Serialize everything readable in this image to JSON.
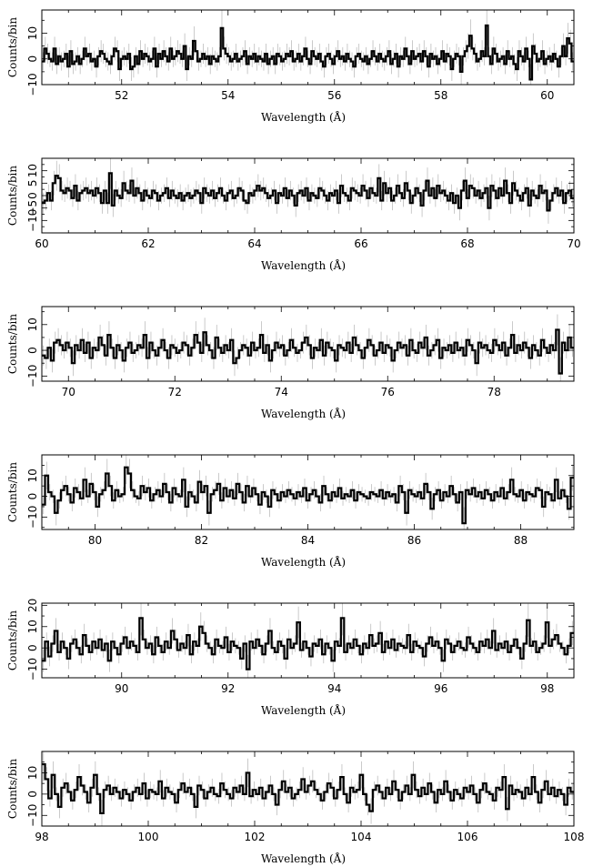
{
  "chart_data": [
    {
      "type": "step",
      "xlabel": "Wavelength (Å)",
      "ylabel": "Counts/bin",
      "xlim": [
        50.5,
        60.5
      ],
      "ylim": [
        -10,
        19
      ],
      "xticks": [
        "52",
        "54",
        "56",
        "58",
        "60"
      ],
      "yticks": [
        "−10",
        "0",
        "10"
      ],
      "error_bars": true,
      "y": [
        -1,
        4,
        2,
        0,
        -1,
        4,
        -2,
        1,
        -1,
        0,
        2,
        -3,
        3,
        -2,
        -1,
        1,
        -2,
        0,
        4,
        1,
        2,
        -1,
        0,
        -3,
        1,
        3,
        2,
        0,
        -1,
        -2,
        1,
        4,
        3,
        -4,
        0,
        1,
        0,
        2,
        -4,
        -3,
        1,
        -2,
        3,
        0,
        2,
        1,
        -1,
        0,
        4,
        -3,
        2,
        0,
        3,
        1,
        -1,
        4,
        0,
        1,
        3,
        2,
        0,
        5,
        -4,
        1,
        0,
        7,
        3,
        -1,
        0,
        2,
        0,
        1,
        -2,
        1,
        0,
        -1,
        1,
        12,
        4,
        2,
        1,
        -1,
        0,
        2,
        -1,
        0,
        1,
        3,
        -2,
        1,
        0,
        2,
        -1,
        1,
        0,
        -1,
        2,
        -2,
        0,
        1,
        -2,
        2,
        1,
        -1,
        0,
        2,
        1,
        3,
        -1,
        0,
        2,
        -1,
        1,
        4,
        0,
        -2,
        3,
        1,
        0,
        2,
        -1,
        -3,
        1,
        2,
        0,
        -2,
        1,
        3,
        0,
        1,
        -1,
        2,
        0,
        -1,
        -3,
        1,
        2,
        0,
        -1,
        1,
        -2,
        0,
        3,
        1,
        -1,
        2,
        0,
        -1,
        1,
        3,
        -2,
        0,
        2,
        -3,
        1,
        0,
        4,
        1,
        -2,
        3,
        0,
        1,
        2,
        -1,
        3,
        1,
        -3,
        2,
        0,
        1,
        -2,
        0,
        3,
        -1,
        2,
        1,
        -4,
        0,
        2,
        1,
        -5,
        1,
        3,
        5,
        9,
        4,
        2,
        -1,
        0,
        3,
        1,
        13,
        1,
        -2,
        4,
        2,
        -1,
        0,
        1,
        -2,
        3,
        0,
        1,
        -2,
        -4,
        3,
        1,
        -1,
        4,
        0,
        -8,
        5,
        2,
        -1,
        0,
        3,
        -2,
        0,
        1,
        -1,
        2,
        0,
        -3,
        1,
        5,
        1,
        8,
        6,
        -1
      ]
    },
    {
      "type": "step",
      "xlabel": "Wavelength (Å)",
      "ylabel": "Counts/bin",
      "xlim": [
        60,
        70
      ],
      "ylim": [
        -15,
        15
      ],
      "xticks": [
        "60",
        "62",
        "64",
        "66",
        "68",
        "70"
      ],
      "yticks": [
        "−10",
        "−5",
        "0",
        "5",
        "10"
      ],
      "error_bars": true,
      "y": [
        -3,
        -2,
        1,
        -2,
        5,
        8,
        7,
        2,
        1,
        3,
        2,
        -1,
        4,
        -2,
        1,
        2,
        3,
        1,
        2,
        0,
        3,
        1,
        -3,
        2,
        -3,
        9,
        -4,
        2,
        0,
        -1,
        5,
        2,
        1,
        6,
        0,
        3,
        1,
        -2,
        2,
        0,
        -1,
        2,
        1,
        -2,
        0,
        1,
        3,
        -1,
        2,
        0,
        -1,
        1,
        -2,
        0,
        1,
        -1,
        0,
        2,
        1,
        -3,
        3,
        1,
        0,
        2,
        -1,
        1,
        3,
        0,
        -2,
        1,
        2,
        -1,
        0,
        3,
        2,
        -2,
        -3,
        1,
        0,
        2,
        4,
        2,
        3,
        1,
        -1,
        0,
        2,
        -3,
        1,
        0,
        3,
        -1,
        2,
        0,
        -4,
        1,
        2,
        0,
        3,
        -2,
        1,
        0,
        -1,
        3,
        2,
        0,
        -2,
        1,
        0,
        2,
        -3,
        4,
        1,
        0,
        -2,
        3,
        2,
        1,
        0,
        4,
        2,
        -1,
        3,
        1,
        0,
        7,
        -2,
        5,
        1,
        3,
        -2,
        0,
        4,
        1,
        -1,
        5,
        2,
        -3,
        0,
        3,
        1,
        -4,
        2,
        6,
        0,
        3,
        -1,
        4,
        1,
        2,
        0,
        -2,
        1,
        -3,
        0,
        -5,
        2,
        6,
        -1,
        4,
        3,
        0,
        2,
        -1,
        1,
        3,
        -5,
        4,
        2,
        -1,
        3,
        0,
        6,
        1,
        -3,
        5,
        2,
        0,
        -2,
        1,
        3,
        -4,
        2,
        0,
        -1,
        4,
        1,
        2,
        -6,
        -2,
        1,
        3,
        0,
        2,
        -3,
        1,
        2,
        -1
      ]
    },
    {
      "type": "step",
      "xlabel": "Wavelength (Å)",
      "ylabel": "Counts/bin",
      "xlim": [
        69.5,
        79.5
      ],
      "ylim": [
        -12,
        17
      ],
      "xticks": [
        "70",
        "72",
        "74",
        "76",
        "78"
      ],
      "yticks": [
        "−10",
        "0",
        "10"
      ],
      "error_bars": true,
      "y": [
        -2,
        -3,
        1,
        -4,
        3,
        4,
        2,
        0,
        3,
        1,
        -5,
        2,
        0,
        4,
        -1,
        3,
        -3,
        1,
        0,
        5,
        2,
        -2,
        6,
        1,
        -3,
        2,
        0,
        -4,
        1,
        3,
        -1,
        0,
        2,
        1,
        6,
        -3,
        3,
        0,
        -2,
        1,
        4,
        0,
        -3,
        2,
        1,
        -1,
        0,
        3,
        2,
        -2,
        1,
        6,
        3,
        -1,
        7,
        2,
        0,
        -3,
        5,
        1,
        -1,
        2,
        0,
        4,
        -5,
        -3,
        0,
        2,
        1,
        -2,
        3,
        0,
        1,
        6,
        -1,
        2,
        -4,
        0,
        3,
        1,
        2,
        -2,
        0,
        4,
        1,
        -1,
        0,
        3,
        5,
        2,
        -3,
        1,
        0,
        4,
        -2,
        3,
        1,
        0,
        -4,
        2,
        1,
        0,
        3,
        -1,
        5,
        2,
        0,
        -3,
        1,
        4,
        2,
        -2,
        0,
        3,
        -1,
        2,
        1,
        -4,
        0,
        3,
        1,
        2,
        -2,
        4,
        0,
        -1,
        3,
        1,
        5,
        -2,
        0,
        2,
        4,
        -3,
        1,
        0,
        2,
        -1,
        3,
        0,
        1,
        -2,
        4,
        2,
        0,
        -5,
        3,
        1,
        2,
        0,
        -1,
        4,
        2,
        0,
        3,
        -2,
        1,
        6,
        -1,
        2,
        0,
        3,
        1,
        -3,
        2,
        0,
        -2,
        4,
        1,
        -1,
        2,
        0,
        8,
        -9,
        3,
        0,
        5,
        1
      ]
    },
    {
      "type": "step",
      "xlabel": "Wavelength (Å)",
      "ylabel": "Counts/bin",
      "xlim": [
        79,
        89
      ],
      "ylim": [
        -16,
        20
      ],
      "xticks": [
        "80",
        "82",
        "84",
        "86",
        "88"
      ],
      "yticks": [
        "−10",
        "0",
        "10"
      ],
      "error_bars": true,
      "y": [
        -4,
        10,
        2,
        0,
        -8,
        -2,
        3,
        5,
        1,
        -3,
        4,
        2,
        -1,
        8,
        0,
        6,
        2,
        -5,
        1,
        3,
        11,
        5,
        -2,
        3,
        0,
        1,
        14,
        11,
        3,
        0,
        -1,
        5,
        2,
        4,
        -2,
        1,
        3,
        0,
        6,
        2,
        -3,
        4,
        1,
        0,
        8,
        -5,
        2,
        0,
        -3,
        7,
        2,
        5,
        -8,
        1,
        3,
        6,
        -2,
        4,
        0,
        3,
        -1,
        6,
        2,
        -3,
        5,
        0,
        4,
        1,
        -4,
        2,
        0,
        -5,
        3,
        1,
        -2,
        2,
        0,
        3,
        1,
        -1,
        2,
        0,
        4,
        -2,
        1,
        3,
        0,
        -3,
        5,
        1,
        -2,
        2,
        0,
        4,
        -1,
        1,
        0,
        3,
        -2,
        2,
        1,
        0,
        -1,
        2,
        1,
        0,
        3,
        -1,
        2,
        0,
        1,
        -3,
        5,
        2,
        -8,
        3,
        1,
        0,
        2,
        -1,
        6,
        2,
        -6,
        1,
        3,
        -2,
        2,
        0,
        5,
        1,
        -3,
        2,
        -13,
        3,
        1,
        4,
        0,
        2,
        -1,
        3,
        1,
        -2,
        2,
        0,
        4,
        -1,
        2,
        8,
        1,
        0,
        3,
        -2,
        2,
        1,
        0,
        4,
        3,
        -5,
        2,
        1,
        -2,
        8,
        -1,
        3,
        0,
        -6,
        9
      ]
    },
    {
      "type": "step",
      "xlabel": "Wavelength (Å)",
      "ylabel": "Counts/bin",
      "xlim": [
        88.5,
        98.5
      ],
      "ylim": [
        -14,
        21
      ],
      "xticks": [
        "90",
        "92",
        "94",
        "96",
        "98"
      ],
      "yticks": [
        "−10",
        "0",
        "10",
        "20"
      ],
      "error_bars": true,
      "y": [
        -6,
        3,
        -4,
        2,
        8,
        -2,
        3,
        0,
        -5,
        2,
        4,
        0,
        -3,
        6,
        1,
        -2,
        3,
        0,
        4,
        -1,
        2,
        -6,
        3,
        0,
        -3,
        2,
        5,
        0,
        3,
        1,
        -2,
        14,
        4,
        0,
        2,
        -3,
        5,
        1,
        -2,
        3,
        0,
        8,
        4,
        -1,
        2,
        0,
        6,
        -3,
        3,
        1,
        10,
        7,
        2,
        0,
        -3,
        4,
        1,
        0,
        5,
        -2,
        3,
        1,
        0,
        -5,
        2,
        -10,
        3,
        0,
        4,
        1,
        -3,
        2,
        8,
        0,
        -2,
        3,
        1,
        -5,
        4,
        0,
        2,
        12,
        -1,
        3,
        0,
        -4,
        2,
        1,
        4,
        -3,
        2,
        0,
        -6,
        3,
        1,
        14,
        -2,
        2,
        0,
        4,
        1,
        -3,
        2,
        0,
        6,
        1,
        2,
        7,
        -2,
        3,
        0,
        4,
        -1,
        2,
        1,
        0,
        6,
        -2,
        3,
        1,
        0,
        -4,
        2,
        5,
        1,
        3,
        0,
        -6,
        4,
        2,
        -2,
        1,
        3,
        0,
        -1,
        5,
        2,
        0,
        -2,
        3,
        1,
        4,
        0,
        8,
        -1,
        2,
        0,
        3,
        -2,
        1,
        4,
        0,
        -5,
        2,
        13,
        1,
        3,
        -2,
        0,
        2,
        12,
        1,
        4,
        6,
        2,
        0,
        -3,
        1,
        7
      ]
    },
    {
      "type": "step",
      "xlabel": "Wavelength (Å)",
      "ylabel": "Counts/bin",
      "xlim": [
        98,
        108
      ],
      "ylim": [
        -15,
        20
      ],
      "xticks": [
        "98",
        "100",
        "102",
        "104",
        "106",
        "108"
      ],
      "yticks": [
        "−10",
        "0",
        "10"
      ],
      "error_bars": true,
      "y": [
        14,
        7,
        -2,
        9,
        0,
        -6,
        3,
        5,
        1,
        -3,
        2,
        8,
        4,
        1,
        -4,
        3,
        9,
        0,
        -9,
        2,
        4,
        0,
        3,
        1,
        -2,
        2,
        0,
        -3,
        1,
        3,
        0,
        5,
        -2,
        2,
        1,
        0,
        6,
        -2,
        3,
        1,
        0,
        -4,
        2,
        5,
        1,
        3,
        0,
        -6,
        4,
        2,
        -2,
        1,
        3,
        0,
        -1,
        5,
        2,
        0,
        -2,
        3,
        1,
        4,
        0,
        10,
        -1,
        2,
        0,
        3,
        -2,
        1,
        4,
        0,
        -5,
        2,
        6,
        1,
        3,
        -2,
        0,
        2,
        7,
        1,
        4,
        6,
        2,
        0,
        -3,
        1,
        5,
        3,
        -2,
        2,
        8,
        0,
        -4,
        3,
        1,
        2,
        9,
        0,
        -5,
        -8,
        2,
        4,
        1,
        -2,
        3,
        0,
        6,
        2,
        -3,
        1,
        4,
        0,
        9,
        2,
        -1,
        3,
        0,
        5,
        1,
        -4,
        2,
        0,
        6,
        1,
        -3,
        2,
        0,
        -2,
        3,
        1,
        4,
        0,
        -4,
        2,
        5,
        1,
        0,
        -3,
        3,
        2,
        8,
        -7,
        4,
        0,
        2,
        1,
        -2,
        3,
        0,
        8,
        1,
        -4,
        2,
        6,
        0,
        3,
        -1,
        2,
        0,
        -5,
        3,
        1
      ]
    }
  ]
}
